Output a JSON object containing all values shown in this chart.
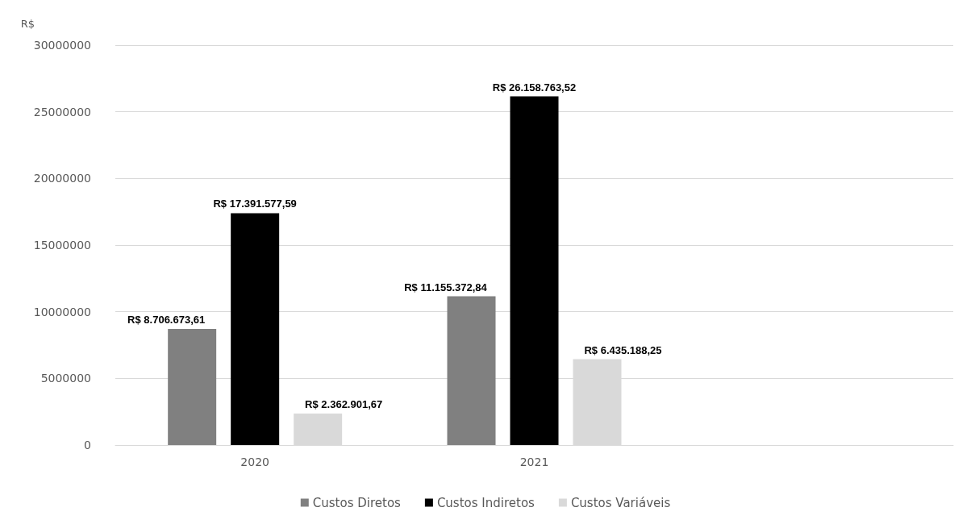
{
  "chart_data": {
    "type": "bar",
    "ylabel": "R$",
    "categories": [
      "2020",
      "2021",
      null
    ],
    "series": [
      {
        "name": "Custos Diretos",
        "color": "#808080",
        "values": [
          8706673.61,
          11155372.84,
          null
        ],
        "value_labels": [
          "R$ 8.706.673,61",
          "R$ 11.155.372,84",
          null
        ]
      },
      {
        "name": "Custos Indiretos",
        "color": "#000000",
        "values": [
          17391577.59,
          26158763.52,
          null
        ],
        "value_labels": [
          "R$ 17.391.577,59",
          "R$ 26.158.763,52",
          null
        ]
      },
      {
        "name": "Custos Variáveis",
        "color": "#d9d9d9",
        "values": [
          2362901.67,
          6435188.25,
          null
        ],
        "value_labels": [
          "R$ 2.362.901,67",
          "R$ 6.435.188,25",
          null
        ]
      }
    ],
    "ylim": [
      0,
      30000000
    ],
    "yticks": [
      0,
      5000000,
      10000000,
      15000000,
      20000000,
      25000000,
      30000000
    ],
    "grid": "y",
    "legend": "bottom"
  }
}
